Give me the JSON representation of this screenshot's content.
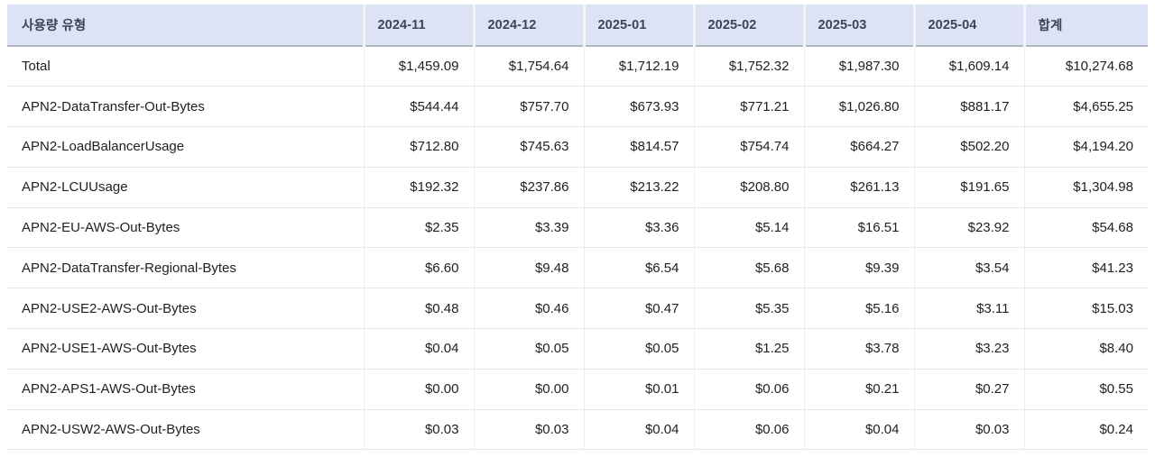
{
  "table": {
    "columns": [
      "사용량 유형",
      "2024-11",
      "2024-12",
      "2025-01",
      "2025-02",
      "2025-03",
      "2025-04",
      "합계"
    ],
    "rows": [
      {
        "label": "Total",
        "values": [
          "$1,459.09",
          "$1,754.64",
          "$1,712.19",
          "$1,752.32",
          "$1,987.30",
          "$1,609.14",
          "$10,274.68"
        ]
      },
      {
        "label": "APN2-DataTransfer-Out-Bytes",
        "values": [
          "$544.44",
          "$757.70",
          "$673.93",
          "$771.21",
          "$1,026.80",
          "$881.17",
          "$4,655.25"
        ]
      },
      {
        "label": "APN2-LoadBalancerUsage",
        "values": [
          "$712.80",
          "$745.63",
          "$814.57",
          "$754.74",
          "$664.27",
          "$502.20",
          "$4,194.20"
        ]
      },
      {
        "label": "APN2-LCUUsage",
        "values": [
          "$192.32",
          "$237.86",
          "$213.22",
          "$208.80",
          "$261.13",
          "$191.65",
          "$1,304.98"
        ]
      },
      {
        "label": "APN2-EU-AWS-Out-Bytes",
        "values": [
          "$2.35",
          "$3.39",
          "$3.36",
          "$5.14",
          "$16.51",
          "$23.92",
          "$54.68"
        ]
      },
      {
        "label": "APN2-DataTransfer-Regional-Bytes",
        "values": [
          "$6.60",
          "$9.48",
          "$6.54",
          "$5.68",
          "$9.39",
          "$3.54",
          "$41.23"
        ]
      },
      {
        "label": "APN2-USE2-AWS-Out-Bytes",
        "values": [
          "$0.48",
          "$0.46",
          "$0.47",
          "$5.35",
          "$5.16",
          "$3.11",
          "$15.03"
        ]
      },
      {
        "label": "APN2-USE1-AWS-Out-Bytes",
        "values": [
          "$0.04",
          "$0.05",
          "$0.05",
          "$1.25",
          "$3.78",
          "$3.23",
          "$8.40"
        ]
      },
      {
        "label": "APN2-APS1-AWS-Out-Bytes",
        "values": [
          "$0.00",
          "$0.00",
          "$0.01",
          "$0.06",
          "$0.21",
          "$0.27",
          "$0.55"
        ]
      },
      {
        "label": "APN2-USW2-AWS-Out-Bytes",
        "values": [
          "$0.03",
          "$0.03",
          "$0.04",
          "$0.06",
          "$0.04",
          "$0.03",
          "$0.24"
        ]
      }
    ]
  },
  "colors": {
    "header_bg": "#dde3f4",
    "header_text": "#3b4559",
    "header_cell_gap": "#f2f4fb",
    "header_bottom_rule": "#b2b6c0",
    "row_separator": "#e8e8e8",
    "column_separator": "#eceef4",
    "body_text": "#202124",
    "page_bg": "#ffffff"
  }
}
